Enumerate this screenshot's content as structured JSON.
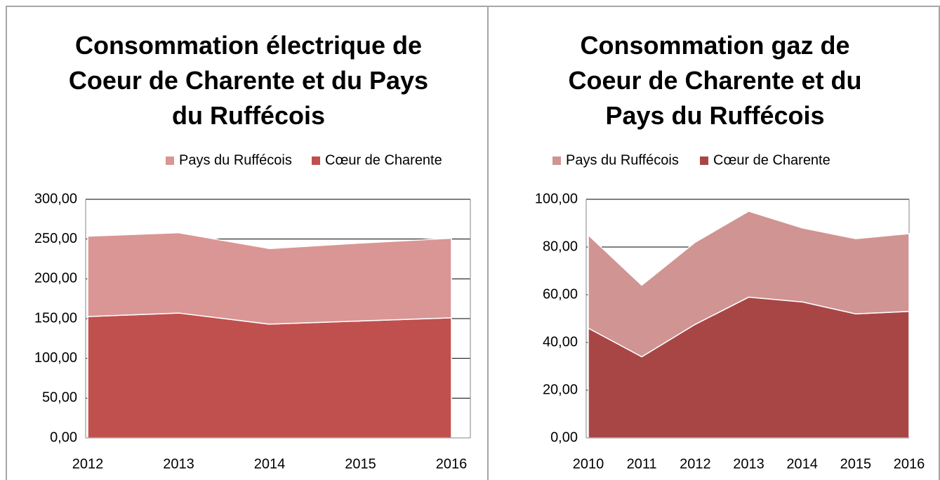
{
  "chart_data": [
    {
      "type": "area",
      "stacked": true,
      "title": "Consommation électrique de Coeur de Charente et du Pays du Ruffécois",
      "categories": [
        "2012",
        "2013",
        "2014",
        "2015",
        "2016"
      ],
      "series": [
        {
          "name": "Pays du Ruffécois",
          "color": "#d99694",
          "values": [
            101,
            101,
            95,
            98,
            100
          ]
        },
        {
          "name": "Cœur de Charente",
          "color": "#c0504d",
          "values": [
            152.6,
            157,
            143,
            147,
            151
          ]
        }
      ],
      "ylim": [
        0,
        300
      ],
      "yticks": [
        {
          "value": 0,
          "label": "0,00"
        },
        {
          "value": 50,
          "label": "50,00"
        },
        {
          "value": 100,
          "label": "100,00"
        },
        {
          "value": 150,
          "label": "150,00"
        },
        {
          "value": 200,
          "label": "200,00"
        },
        {
          "value": 250,
          "label": "250,00"
        },
        {
          "value": 300,
          "label": "300,00"
        }
      ],
      "grid": true,
      "legend": "top"
    },
    {
      "type": "area",
      "stacked": true,
      "title": "Consommation gaz de Coeur de Charente et du Pays du Ruffécois",
      "categories": [
        "2010",
        "2011",
        "2012",
        "2013",
        "2014",
        "2015",
        "2016"
      ],
      "series": [
        {
          "name": "Pays du Ruffécois",
          "color": "#d09492",
          "values": [
            39,
            30,
            34.4,
            36,
            31,
            31.5,
            32.6
          ]
        },
        {
          "name": "Cœur de Charente",
          "color": "#a84646",
          "values": [
            46,
            34,
            47.6,
            59,
            57,
            52,
            53
          ]
        }
      ],
      "ylim": [
        0,
        100
      ],
      "yticks": [
        {
          "value": 0,
          "label": "0,00"
        },
        {
          "value": 20,
          "label": "20,00"
        },
        {
          "value": 40,
          "label": "40,00"
        },
        {
          "value": 60,
          "label": "60,00"
        },
        {
          "value": 80,
          "label": "80,00"
        },
        {
          "value": 100,
          "label": "100,00"
        }
      ],
      "grid": true,
      "legend": "top"
    }
  ]
}
